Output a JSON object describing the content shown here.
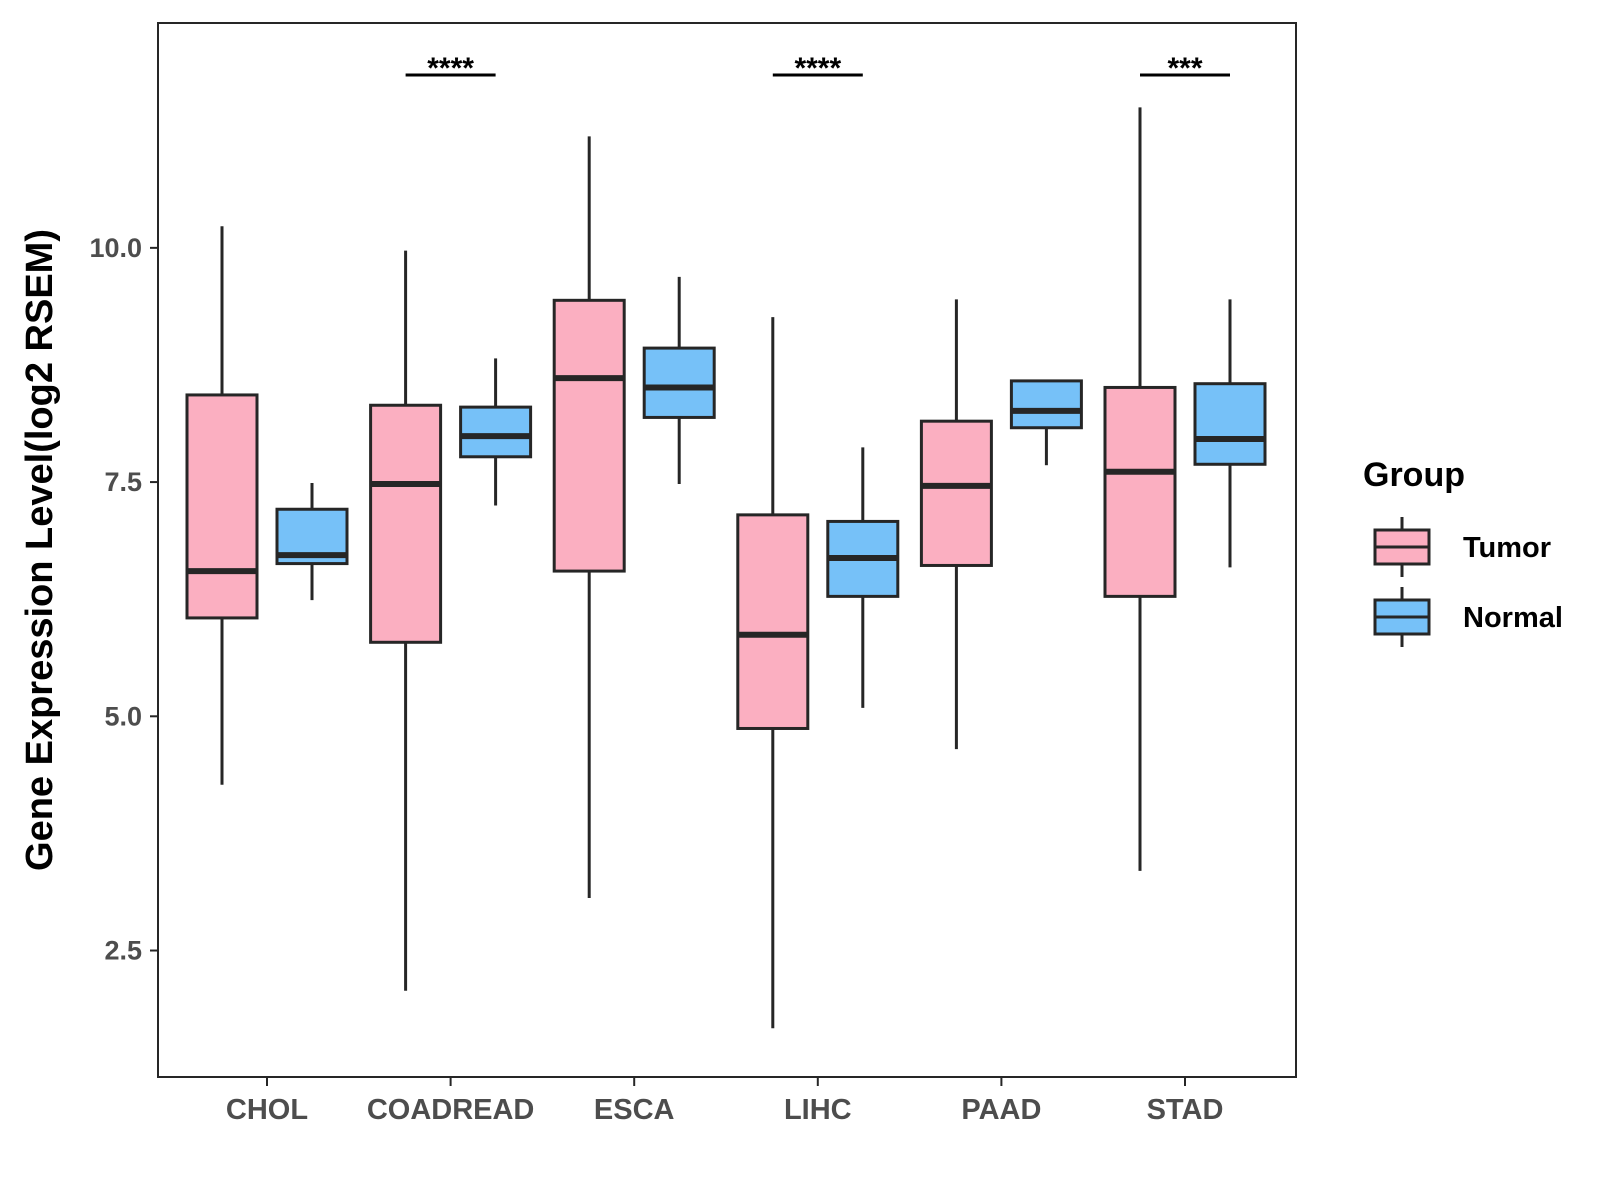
{
  "chart_data": {
    "type": "boxplot",
    "ylabel": "Gene Expression Level(log2 RSEM)",
    "xlabel": "",
    "ylim": [
      1.15,
      12.4
    ],
    "yticks": [
      2.5,
      5.0,
      7.5,
      10.0
    ],
    "ytick_labels": [
      "2.5",
      "5.0",
      "7.5",
      "10.0"
    ],
    "categories": [
      "CHOL",
      "COADREAD",
      "ESCA",
      "LIHC",
      "PAAD",
      "STAD"
    ],
    "legend": {
      "title": "Group",
      "position": "right",
      "entries": [
        {
          "name": "Tumor",
          "color": "#FBAFC1"
        },
        {
          "name": "Normal",
          "color": "#76C1F8"
        }
      ]
    },
    "series": [
      {
        "name": "Tumor",
        "color": "#FBAFC1",
        "boxes": [
          {
            "category": "CHOL",
            "whisker_low": 4.27,
            "q1": 6.05,
            "median": 6.55,
            "q3": 8.43,
            "whisker_high": 10.23
          },
          {
            "category": "COADREAD",
            "whisker_low": 2.07,
            "q1": 5.79,
            "median": 7.48,
            "q3": 8.32,
            "whisker_high": 9.97
          },
          {
            "category": "ESCA",
            "whisker_low": 3.06,
            "q1": 6.55,
            "median": 8.61,
            "q3": 9.44,
            "whisker_high": 11.19
          },
          {
            "category": "LIHC",
            "whisker_low": 1.67,
            "q1": 4.87,
            "median": 5.87,
            "q3": 7.15,
            "whisker_high": 9.26
          },
          {
            "category": "PAAD",
            "whisker_low": 4.65,
            "q1": 6.61,
            "median": 7.46,
            "q3": 8.15,
            "whisker_high": 9.45
          },
          {
            "category": "STAD",
            "whisker_low": 3.35,
            "q1": 6.28,
            "median": 7.61,
            "q3": 8.51,
            "whisker_high": 11.5
          }
        ]
      },
      {
        "name": "Normal",
        "color": "#76C1F8",
        "boxes": [
          {
            "category": "CHOL",
            "whisker_low": 6.24,
            "q1": 6.63,
            "median": 6.72,
            "q3": 7.21,
            "whisker_high": 7.49
          },
          {
            "category": "COADREAD",
            "whisker_low": 7.25,
            "q1": 7.77,
            "median": 7.99,
            "q3": 8.3,
            "whisker_high": 8.82
          },
          {
            "category": "ESCA",
            "whisker_low": 7.48,
            "q1": 8.19,
            "median": 8.51,
            "q3": 8.93,
            "whisker_high": 9.69
          },
          {
            "category": "LIHC",
            "whisker_low": 5.09,
            "q1": 6.28,
            "median": 6.69,
            "q3": 7.08,
            "whisker_high": 7.87
          },
          {
            "category": "PAAD",
            "whisker_low": 7.68,
            "q1": 8.08,
            "median": 8.26,
            "q3": 8.58,
            "whisker_high": 8.58
          },
          {
            "category": "STAD",
            "whisker_low": 6.59,
            "q1": 7.69,
            "median": 7.96,
            "q3": 8.55,
            "whisker_high": 9.45
          }
        ]
      }
    ],
    "significance": [
      {
        "category": "COADREAD",
        "label": "****"
      },
      {
        "category": "LIHC",
        "label": "****"
      },
      {
        "category": "STAD",
        "label": "***"
      }
    ]
  },
  "colors": {
    "outline": "#262626",
    "axis_text": "#4d4d4d",
    "title_text": "#000000",
    "background": "#ffffff"
  }
}
